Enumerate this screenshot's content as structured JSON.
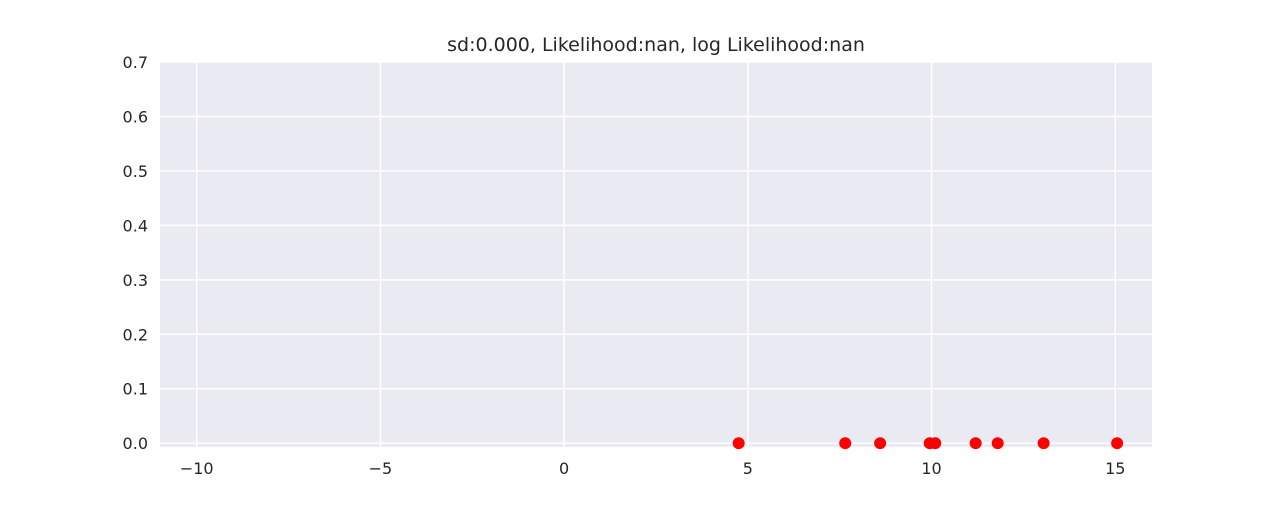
{
  "chart_data": {
    "type": "scatter",
    "title": "sd:0.000, Likelihood:nan, log Likelihood:nan",
    "xlabel": "",
    "ylabel": "",
    "xlim": [
      -11,
      16
    ],
    "ylim": [
      -0.007,
      0.7
    ],
    "x_ticks": [
      -10,
      -5,
      0,
      5,
      10,
      15
    ],
    "x_tick_labels": [
      "−10",
      "−5",
      "0",
      "5",
      "10",
      "15"
    ],
    "y_ticks": [
      0.0,
      0.1,
      0.2,
      0.3,
      0.4,
      0.5,
      0.6,
      0.7
    ],
    "y_tick_labels": [
      "0.0",
      "0.1",
      "0.2",
      "0.3",
      "0.4",
      "0.5",
      "0.6",
      "0.7"
    ],
    "grid": true,
    "series": [
      {
        "color": "#ff0000",
        "x": [
          4.75,
          7.65,
          8.6,
          9.95,
          10.1,
          11.2,
          11.8,
          13.05,
          15.05
        ],
        "y": [
          0,
          0,
          0,
          0,
          0,
          0,
          0,
          0,
          0
        ]
      }
    ],
    "colors": {
      "axes_bg": "#eaeaf2",
      "grid": "#ffffff",
      "text": "#262626",
      "point": "#ff0000"
    }
  }
}
